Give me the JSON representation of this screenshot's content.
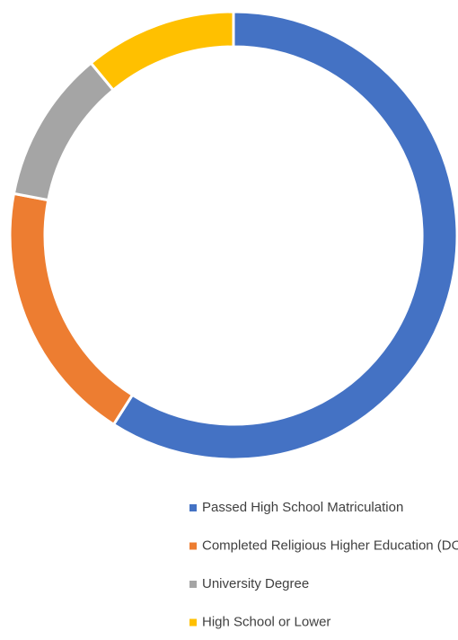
{
  "chart_data": {
    "type": "doughnut",
    "categories": [
      "Passed High School Matriculation",
      "Completed Religious Higher Education (DORA)",
      "University Degree",
      "High School or Lower"
    ],
    "values": [
      59,
      19,
      11,
      11
    ],
    "colors": [
      "#4472c4",
      "#ed7d31",
      "#a5a5a5",
      "#ffc000"
    ],
    "legend": "bottom"
  }
}
